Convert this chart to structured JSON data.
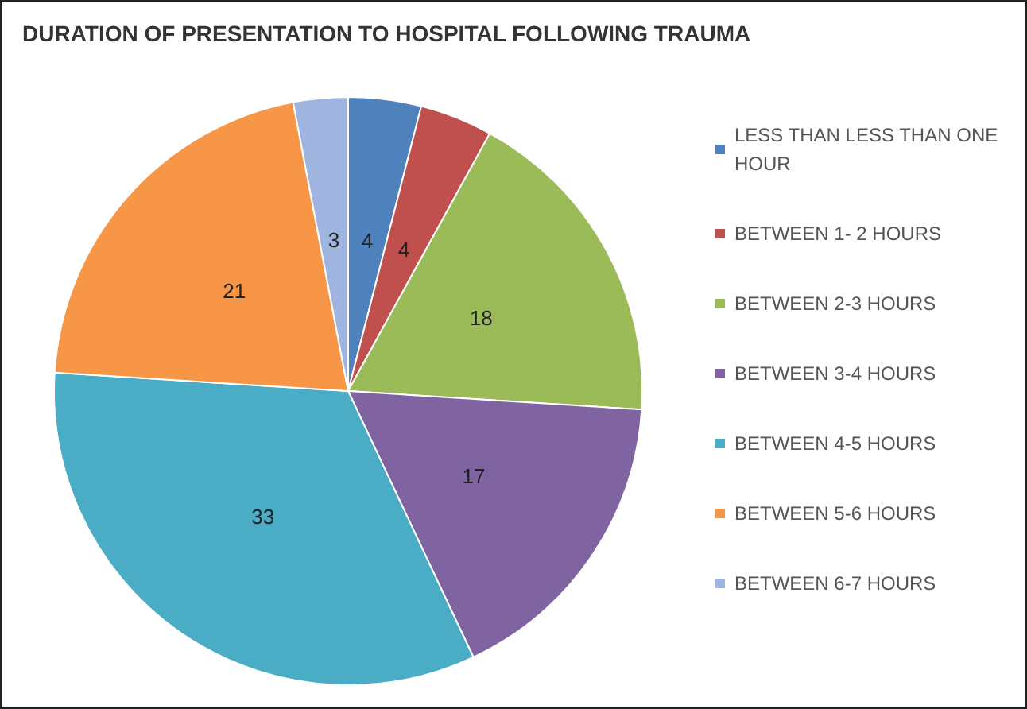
{
  "chart_data": {
    "type": "pie",
    "title": "DURATION OF PRESENTATION TO HOSPITAL FOLLOWING TRAUMA",
    "categories": [
      "LESS THAN LESS THAN ONE HOUR",
      "BETWEEN 1- 2 HOURS",
      "BETWEEN 2-3 HOURS",
      "BETWEEN 3-4 HOURS",
      "BETWEEN 4-5 HOURS",
      "BETWEEN 5-6 HOURS",
      "BETWEEN 6-7 HOURS"
    ],
    "values": [
      4,
      4,
      18,
      17,
      33,
      21,
      3
    ],
    "colors": [
      "#4f81bd",
      "#c0504d",
      "#9bbb59",
      "#8064a2",
      "#4bacc6",
      "#f79646",
      "#9fb5df"
    ],
    "data_labels": true,
    "legend": "right"
  }
}
